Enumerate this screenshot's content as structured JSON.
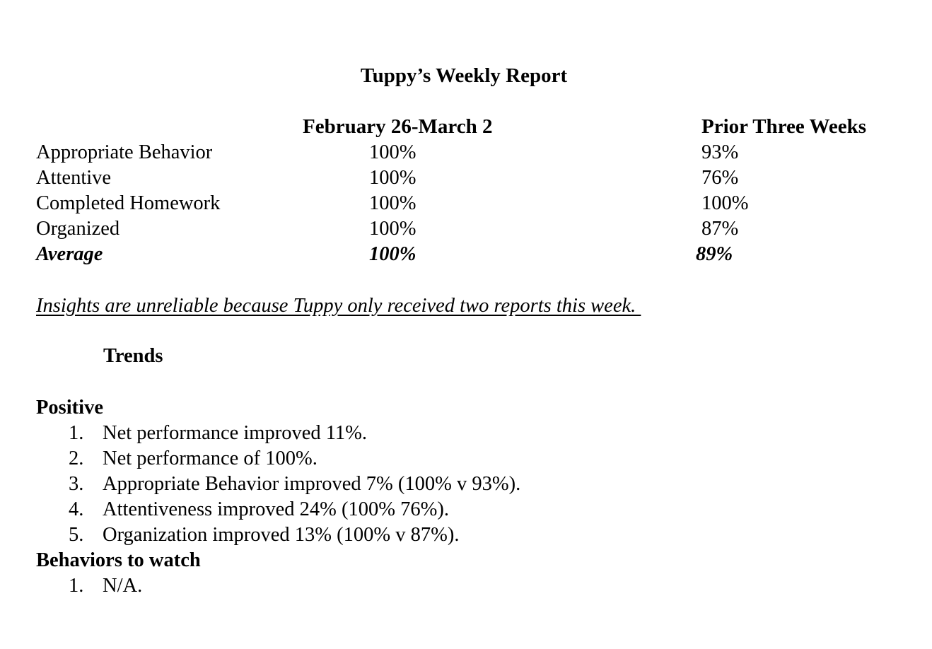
{
  "report": {
    "title": "Tuppy’s Weekly Report",
    "columns": [
      "February 26-March 2",
      "Prior Three Weeks"
    ],
    "rows": [
      {
        "label": "Appropriate Behavior",
        "current": "100%",
        "prior": "93%"
      },
      {
        "label": "Attentive",
        "current": "100%",
        "prior": "76%"
      },
      {
        "label": "Completed Homework",
        "current": "100%",
        "prior": "100%"
      },
      {
        "label": "Organized",
        "current": "100%",
        "prior": "87%"
      }
    ],
    "average": {
      "label": "Average",
      "current": "100%",
      "prior": "89%"
    },
    "note": "Insights are unreliable because Tuppy only received two reports this week. "
  },
  "trends": {
    "heading": "Trends",
    "positive": {
      "heading": "Positive",
      "items": [
        {
          "num": "1.",
          "text": "Net performance improved 11%."
        },
        {
          "num": "2.",
          "text": "Net performance of 100%."
        },
        {
          "num": "3.",
          "text": "Appropriate Behavior improved 7% (100% v 93%)."
        },
        {
          "num": "4.",
          "text": "Attentiveness improved 24% (100% 76%)."
        },
        {
          "num": "5.",
          "text": "Organization improved 13% (100% v 87%)."
        }
      ]
    },
    "watch": {
      "heading": "Behaviors to watch",
      "items": [
        {
          "num": "1.",
          "text": "N/A."
        }
      ]
    }
  }
}
